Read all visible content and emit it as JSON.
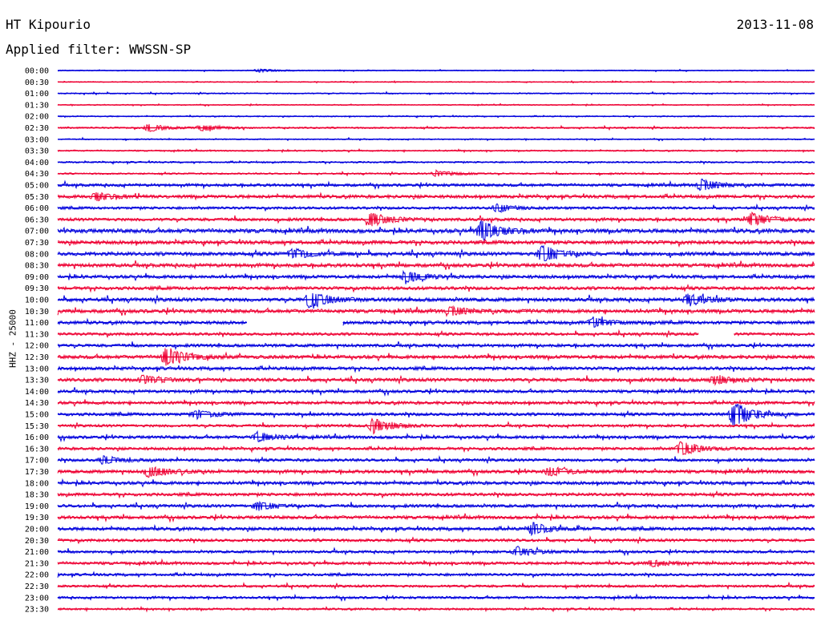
{
  "header": {
    "station": "HT Kipourio",
    "date": "2013-11-08",
    "filter": "Applied filter: WWSSN-SP"
  },
  "chart_data": {
    "type": "line",
    "title": "HT Kipourio",
    "ylabel": "HHZ - 25000",
    "colors": {
      "even_row": "#0000dd",
      "odd_row": "#ee0033"
    },
    "row_labels": [
      "00:00",
      "00:30",
      "01:00",
      "01:30",
      "02:00",
      "02:30",
      "03:00",
      "03:30",
      "04:00",
      "04:30",
      "05:00",
      "05:30",
      "06:00",
      "06:30",
      "07:00",
      "07:30",
      "08:00",
      "08:30",
      "09:00",
      "09:30",
      "10:00",
      "10:30",
      "11:00",
      "11:30",
      "12:00",
      "12:30",
      "13:00",
      "13:30",
      "14:00",
      "14:30",
      "15:00",
      "15:30",
      "16:00",
      "16:30",
      "17:00",
      "17:30",
      "18:00",
      "18:30",
      "19:00",
      "19:30",
      "20:00",
      "20:30",
      "21:00",
      "21:30",
      "22:00",
      "22:30",
      "23:00",
      "23:30"
    ],
    "rows_noise": [
      0.5,
      0.5,
      0.6,
      0.5,
      0.6,
      0.8,
      0.6,
      0.7,
      0.8,
      0.8,
      1.4,
      1.6,
      1.3,
      1.5,
      2.0,
      1.8,
      1.8,
      1.8,
      1.6,
      1.6,
      1.8,
      1.8,
      1.6,
      1.4,
      1.5,
      1.7,
      1.6,
      1.7,
      1.5,
      1.5,
      1.5,
      1.3,
      1.5,
      1.4,
      1.4,
      1.6,
      1.6,
      1.5,
      1.5,
      1.6,
      1.6,
      1.4,
      1.3,
      1.4,
      1.3,
      1.2,
      1.2,
      1.0
    ],
    "events": [
      {
        "row": 0,
        "minute": 8.0,
        "amplitude": 2
      },
      {
        "row": 5,
        "minute": 3.6,
        "amplitude": 5
      },
      {
        "row": 5,
        "minute": 5.7,
        "amplitude": 4
      },
      {
        "row": 9,
        "minute": 15.0,
        "amplitude": 4
      },
      {
        "row": 10,
        "minute": 25.5,
        "amplitude": 7
      },
      {
        "row": 11,
        "minute": 1.5,
        "amplitude": 5
      },
      {
        "row": 12,
        "minute": 17.4,
        "amplitude": 5
      },
      {
        "row": 13,
        "minute": 12.4,
        "amplitude": 9
      },
      {
        "row": 13,
        "minute": 27.5,
        "amplitude": 8
      },
      {
        "row": 14,
        "minute": 16.8,
        "amplitude": 13
      },
      {
        "row": 16,
        "minute": 9.3,
        "amplitude": 6
      },
      {
        "row": 16,
        "minute": 19.2,
        "amplitude": 10
      },
      {
        "row": 18,
        "minute": 13.8,
        "amplitude": 7
      },
      {
        "row": 20,
        "minute": 10.0,
        "amplitude": 12
      },
      {
        "row": 20,
        "minute": 25.0,
        "amplitude": 8
      },
      {
        "row": 21,
        "minute": 15.6,
        "amplitude": 5
      },
      {
        "row": 22,
        "minute": 21.2,
        "amplitude": 6
      },
      {
        "row": 25,
        "minute": 4.3,
        "amplitude": 13
      },
      {
        "row": 27,
        "minute": 3.4,
        "amplitude": 5
      },
      {
        "row": 27,
        "minute": 26.0,
        "amplitude": 5
      },
      {
        "row": 30,
        "minute": 5.5,
        "amplitude": 5
      },
      {
        "row": 30,
        "minute": 26.8,
        "amplitude": 16
      },
      {
        "row": 31,
        "minute": 12.5,
        "amplitude": 9
      },
      {
        "row": 32,
        "minute": 7.9,
        "amplitude": 6
      },
      {
        "row": 33,
        "minute": 24.7,
        "amplitude": 10
      },
      {
        "row": 34,
        "minute": 1.8,
        "amplitude": 5
      },
      {
        "row": 35,
        "minute": 3.6,
        "amplitude": 8
      },
      {
        "row": 35,
        "minute": 19.5,
        "amplitude": 6
      },
      {
        "row": 38,
        "minute": 7.9,
        "amplitude": 5
      },
      {
        "row": 40,
        "minute": 18.8,
        "amplitude": 7
      },
      {
        "row": 42,
        "minute": 18.2,
        "amplitude": 6
      },
      {
        "row": 43,
        "minute": 23.5,
        "amplitude": 4
      }
    ],
    "gaps": [
      {
        "row": 22,
        "from_minute": 7.5,
        "to_minute": 11.3
      },
      {
        "row": 23,
        "from_minute": 25.4,
        "to_minute": 26.8
      }
    ]
  }
}
